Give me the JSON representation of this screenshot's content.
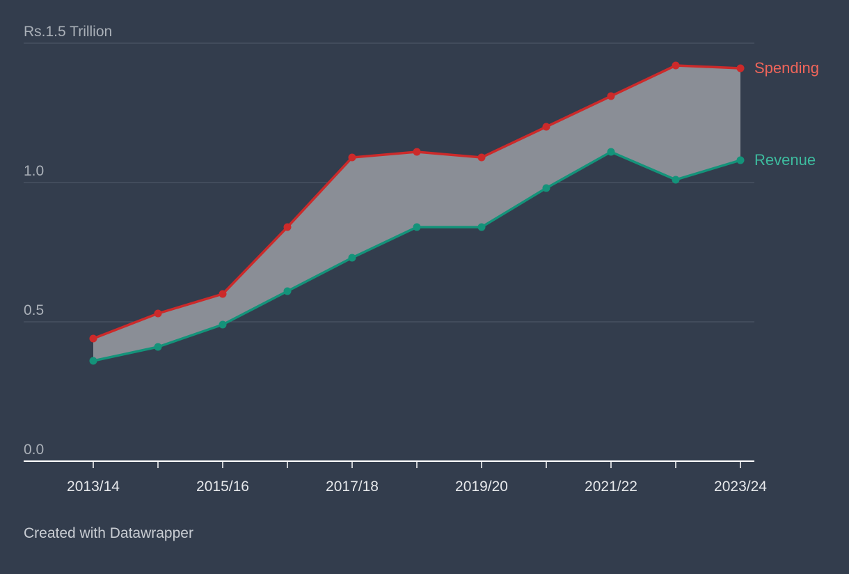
{
  "chart_data": {
    "type": "area",
    "x": [
      "2013/14",
      "2014/15",
      "2015/16",
      "2016/17",
      "2017/18",
      "2018/19",
      "2019/20",
      "2020/21",
      "2021/22",
      "2022/23",
      "2023/24"
    ],
    "x_tick_labels": [
      "2013/14",
      "2015/16",
      "2017/18",
      "2019/20",
      "2021/22",
      "2023/24"
    ],
    "y_tick_labels": [
      "0.0",
      "0.5",
      "1.0",
      "Rs.1.5 Trillion"
    ],
    "y_ticks": [
      0,
      0.5,
      1.0,
      1.5
    ],
    "ylim": [
      0,
      1.5
    ],
    "grid": true,
    "series": [
      {
        "name": "Spending",
        "color": "#cc2a2a",
        "label_color": "#f0655a",
        "values": [
          0.44,
          0.53,
          0.6,
          0.84,
          1.09,
          1.11,
          1.09,
          1.2,
          1.31,
          1.42,
          1.41
        ]
      },
      {
        "name": "Revenue",
        "color": "#14937a",
        "label_color": "#3dbb9e",
        "values": [
          0.36,
          0.41,
          0.49,
          0.61,
          0.73,
          0.84,
          0.84,
          0.98,
          1.11,
          1.01,
          1.08
        ]
      }
    ],
    "fill_between_color": "#8a8e96",
    "background": "#333d4d"
  },
  "footer": {
    "credit": "Created with Datawrapper"
  }
}
